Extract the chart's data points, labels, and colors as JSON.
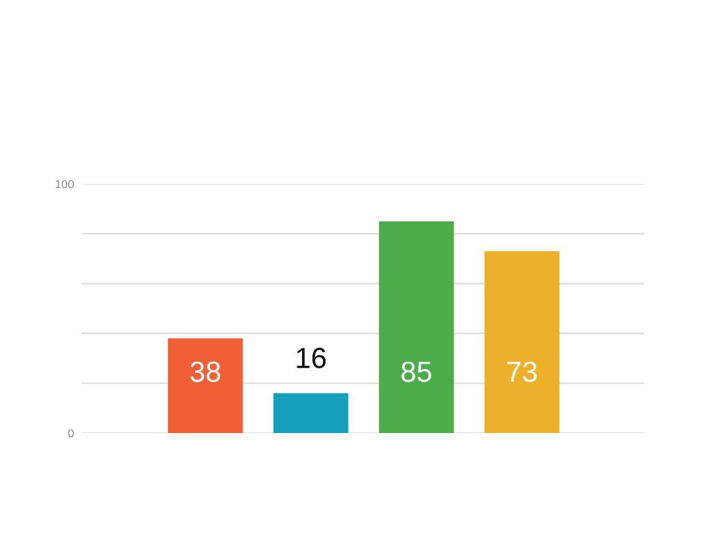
{
  "chart_data": {
    "type": "bar",
    "categories": [
      null,
      null,
      null,
      null
    ],
    "values": [
      38,
      16,
      85,
      73
    ],
    "colors": [
      "#f05f35",
      "#159fbc",
      "#4aad4a",
      "#ecb02a"
    ],
    "ylim": [
      0,
      100
    ],
    "yticks": [
      0,
      {
        "value": 20,
        "label": null
      },
      {
        "value": 40,
        "label": null
      },
      {
        "value": 60,
        "label": null
      },
      {
        "value": 80,
        "label": null
      },
      100
    ],
    "grid": "y",
    "data_labels": true
  }
}
